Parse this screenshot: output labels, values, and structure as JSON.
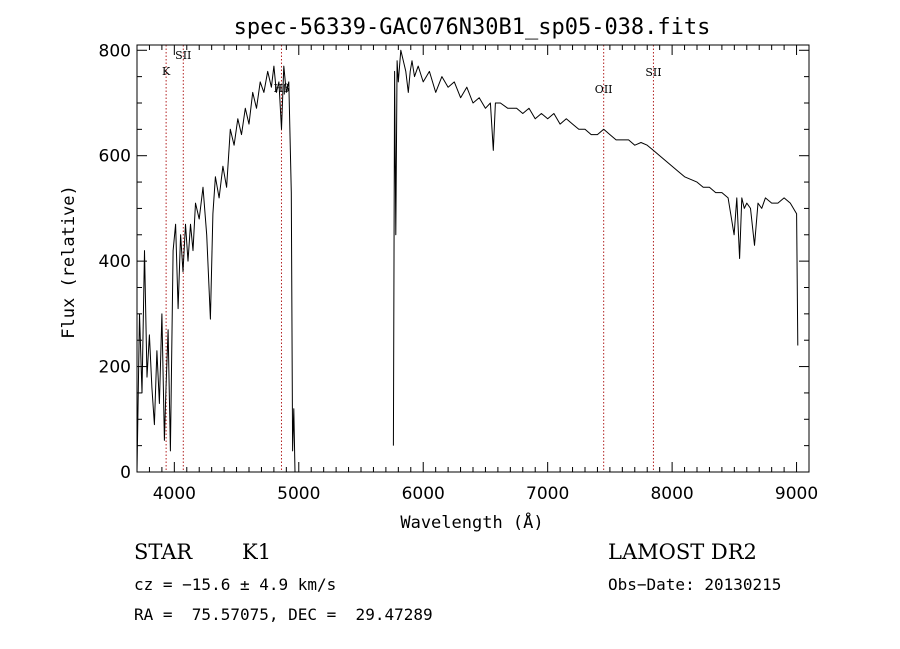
{
  "chart_data": {
    "type": "line",
    "title": "spec-56339-GAC076N30B1_sp05-038.fits",
    "xlabel": "Wavelength (Å)",
    "ylabel": "Flux (relative)",
    "xlim": [
      3700,
      9100
    ],
    "ylim": [
      0,
      810
    ],
    "xticks": [
      4000,
      5000,
      6000,
      7000,
      8000,
      9000
    ],
    "yticks": [
      0,
      200,
      400,
      600,
      800
    ],
    "grid": false,
    "series": [
      {
        "x": [
          3700,
          3720,
          3740,
          3760,
          3780,
          3800,
          3820,
          3840,
          3860,
          3880,
          3900,
          3920,
          3933,
          3950,
          3968,
          3990,
          4010,
          4030,
          4050,
          4070,
          4090,
          4110,
          4130,
          4150,
          4170,
          4200,
          4230,
          4260,
          4290,
          4310,
          4330,
          4360,
          4390,
          4420,
          4450,
          4480,
          4510,
          4540,
          4570,
          4600,
          4630,
          4660,
          4690,
          4720,
          4750,
          4780,
          4800,
          4820,
          4840,
          4861,
          4880,
          4900,
          4920,
          4940,
          4950,
          4960,
          4970
        ],
        "y": [
          0,
          300,
          150,
          420,
          180,
          260,
          160,
          90,
          230,
          130,
          300,
          60,
          160,
          270,
          40,
          420,
          470,
          310,
          450,
          380,
          470,
          400,
          470,
          420,
          510,
          480,
          540,
          450,
          290,
          490,
          560,
          520,
          580,
          540,
          650,
          620,
          670,
          640,
          690,
          660,
          720,
          690,
          740,
          720,
          760,
          730,
          770,
          720,
          740,
          650,
          770,
          720,
          740,
          530,
          40,
          120,
          0
        ]
      },
      {
        "x": [
          5760,
          5770,
          5780,
          5790,
          5800,
          5820,
          5840,
          5860,
          5880,
          5895,
          5910,
          5930,
          5960,
          6000,
          6050,
          6100,
          6150,
          6200,
          6250,
          6300,
          6350,
          6400,
          6450,
          6500,
          6540,
          6563,
          6580,
          6620,
          6680,
          6750,
          6800,
          6850,
          6900,
          6950,
          7000,
          7050,
          7100,
          7150,
          7200,
          7250,
          7300,
          7350,
          7400,
          7450,
          7500,
          7550,
          7600,
          7650,
          7700,
          7750,
          7800,
          7850,
          7900,
          7950,
          8000,
          8050,
          8100,
          8150,
          8200,
          8250,
          8300,
          8350,
          8400,
          8450,
          8498,
          8520,
          8542,
          8560,
          8580,
          8600,
          8630,
          8662,
          8690,
          8720,
          8750,
          8800,
          8850,
          8900,
          8950,
          9000,
          9010
        ],
        "y": [
          50,
          760,
          450,
          780,
          740,
          800,
          780,
          760,
          720,
          760,
          780,
          750,
          770,
          740,
          760,
          720,
          750,
          730,
          740,
          710,
          730,
          700,
          710,
          690,
          700,
          610,
          700,
          700,
          690,
          690,
          680,
          690,
          670,
          680,
          670,
          680,
          660,
          670,
          660,
          650,
          650,
          640,
          640,
          650,
          640,
          630,
          630,
          630,
          620,
          625,
          620,
          610,
          600,
          590,
          580,
          570,
          560,
          555,
          550,
          540,
          540,
          530,
          530,
          520,
          450,
          520,
          405,
          520,
          500,
          510,
          500,
          430,
          510,
          500,
          520,
          510,
          510,
          520,
          510,
          490,
          240
        ]
      }
    ],
    "line_labels": [
      {
        "label": "K",
        "x": 3934
      },
      {
        "label": "SII",
        "x": 4072
      },
      {
        "label": "Hβ",
        "x": 4861
      },
      {
        "label": "OII",
        "x": 7450
      },
      {
        "label": "SII",
        "x": 7850
      }
    ]
  },
  "info": {
    "object_class": "STAR",
    "subclass": "K1",
    "survey": "LAMOST DR2",
    "cz": "cz = −15.6 ± 4.9 km/s",
    "obs_date": "Obs−Date: 20130215",
    "coords": "RA =  75.57075, DEC =  29.47289"
  },
  "colors": {
    "spectrum": "#000000",
    "line_marker": "#b22222",
    "axes": "#000000",
    "background": "#ffffff"
  }
}
